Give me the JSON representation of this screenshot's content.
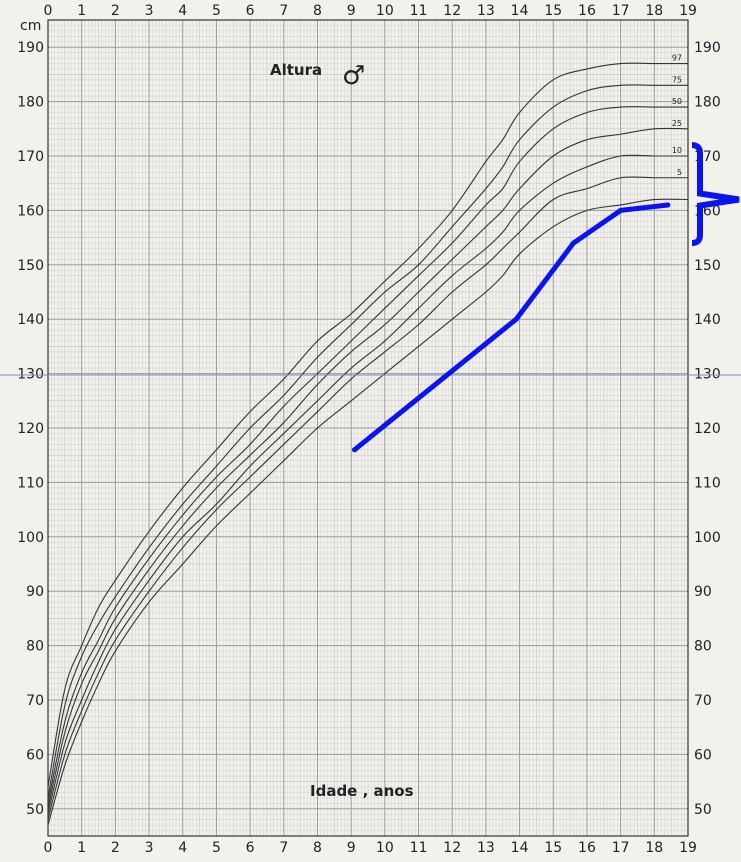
{
  "chart_data": {
    "type": "line",
    "title": "Altura",
    "title_symbol": "♂",
    "xlabel": "Idade , anos",
    "yunit": "cm",
    "xlim": [
      0,
      19
    ],
    "ylim": [
      45,
      195
    ],
    "x_ticks": [
      "0",
      "1",
      "2",
      "3",
      "4",
      "5",
      "6",
      "7",
      "8",
      "9",
      "10",
      "11",
      "12",
      "13",
      "14",
      "15",
      "16",
      "17",
      "18",
      "19"
    ],
    "y_ticks_left": [
      "50",
      "60",
      "70",
      "80",
      "90",
      "100",
      "110",
      "120",
      "130",
      "140",
      "150",
      "160",
      "170",
      "180",
      "190"
    ],
    "y_ticks_right": [
      "50",
      "60",
      "70",
      "80",
      "90",
      "100",
      "110",
      "120",
      "130",
      "140",
      "150",
      "160",
      "170",
      "180",
      "190"
    ],
    "grid": true,
    "percentile_series": [
      {
        "label": "97",
        "x": [
          0,
          0.5,
          1,
          1.5,
          2,
          3,
          4,
          5,
          6,
          7,
          8,
          9,
          10,
          11,
          12,
          13,
          13.5,
          14,
          15,
          16,
          17,
          18,
          19
        ],
        "y": [
          54,
          72,
          80,
          87,
          92,
          101,
          109,
          116,
          123,
          129,
          136,
          141,
          147,
          153,
          160,
          169,
          173,
          178,
          184,
          186,
          187,
          187,
          187
        ]
      },
      {
        "label": "75",
        "x": [
          0,
          0.5,
          1,
          1.5,
          2,
          3,
          4,
          5,
          6,
          7,
          8,
          9,
          10,
          11,
          12,
          13,
          13.5,
          14,
          15,
          16,
          17,
          18,
          19
        ],
        "y": [
          52,
          69,
          78,
          84,
          89,
          98,
          106,
          113,
          120,
          126,
          133,
          139,
          145,
          150,
          157,
          164,
          168,
          173,
          179,
          182,
          183,
          183,
          183
        ]
      },
      {
        "label": "50",
        "x": [
          0,
          0.5,
          1,
          1.5,
          2,
          3,
          4,
          5,
          6,
          7,
          8,
          9,
          10,
          11,
          12,
          13,
          13.5,
          14,
          15,
          16,
          17,
          18,
          19
        ],
        "y": [
          51,
          66,
          75,
          81,
          87,
          96,
          104,
          111,
          117,
          124,
          130,
          136,
          142,
          148,
          154,
          161,
          164,
          169,
          175,
          178,
          179,
          179,
          179
        ]
      },
      {
        "label": "25",
        "x": [
          0,
          0.5,
          1,
          1.5,
          2,
          3,
          4,
          5,
          6,
          7,
          8,
          9,
          10,
          11,
          12,
          13,
          13.5,
          14,
          15,
          16,
          17,
          18,
          19
        ],
        "y": [
          50,
          64,
          73,
          79,
          85,
          94,
          102,
          109,
          115,
          121,
          128,
          134,
          139,
          145,
          151,
          157,
          160,
          164,
          170,
          173,
          174,
          175,
          175
        ]
      },
      {
        "label": "10",
        "x": [
          0,
          0.5,
          1,
          1.5,
          2,
          3,
          4,
          5,
          6,
          7,
          8,
          9,
          10,
          11,
          12,
          13,
          13.5,
          14,
          15,
          16,
          17,
          18,
          19
        ],
        "y": [
          49,
          62,
          70,
          77,
          83,
          92,
          100,
          106,
          113,
          119,
          125,
          131,
          136,
          142,
          148,
          153,
          156,
          160,
          165,
          168,
          170,
          170,
          170
        ]
      },
      {
        "label": "5",
        "x": [
          0,
          0.5,
          1,
          1.5,
          2,
          3,
          4,
          5,
          6,
          7,
          8,
          9,
          10,
          11,
          12,
          13,
          13.5,
          14,
          15,
          16,
          17,
          18,
          19
        ],
        "y": [
          48,
          60,
          68,
          75,
          81,
          90,
          98,
          105,
          111,
          117,
          123,
          129,
          134,
          139,
          145,
          150,
          153,
          156,
          162,
          164,
          166,
          166,
          166
        ]
      },
      {
        "label": "",
        "x": [
          0,
          0.5,
          1,
          1.5,
          2,
          3,
          4,
          5,
          6,
          7,
          8,
          9,
          10,
          11,
          12,
          13,
          13.5,
          14,
          15,
          16,
          17,
          18,
          19
        ],
        "y": [
          47,
          58,
          66,
          73,
          79,
          88,
          95,
          102,
          108,
          114,
          120,
          125,
          130,
          135,
          140,
          145,
          148,
          152,
          157,
          160,
          161,
          162,
          162
        ]
      }
    ],
    "patient_series": {
      "x": [
        9.1,
        13.9,
        15.6,
        17.0,
        18.4
      ],
      "y": [
        116,
        140,
        154,
        160,
        161
      ],
      "color": "#0a14f0"
    },
    "bracket": {
      "y_min": 154,
      "y_max": 172,
      "tip_y": 162,
      "color": "#0a14f0"
    },
    "colors": {
      "background": "#f3f1ec",
      "grid_major": "#9a9a9a",
      "grid_minor": "#c9c9c9",
      "curves": "#333333",
      "patient": "#0a14f0"
    }
  }
}
